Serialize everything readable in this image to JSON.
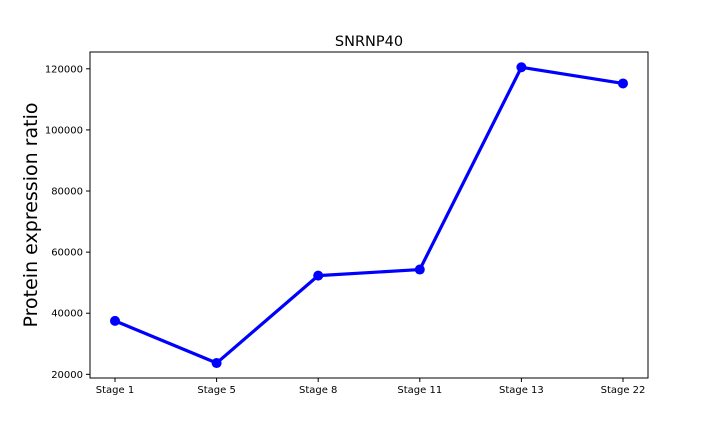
{
  "chart_data": {
    "type": "line",
    "title": "SNRNP40",
    "xlabel": "",
    "ylabel": "Protein expression ratio",
    "categories": [
      "Stage 1",
      "Stage 5",
      "Stage 8",
      "Stage 11",
      "Stage 13",
      "Stage 22"
    ],
    "series": [
      {
        "values": [
          37500,
          23700,
          52300,
          54300,
          120500,
          115200
        ],
        "color": "#0000ff"
      }
    ],
    "yticks": [
      20000,
      40000,
      60000,
      80000,
      100000,
      120000
    ],
    "ylim": [
      18800,
      125500
    ],
    "grid": false,
    "legend": "none"
  }
}
